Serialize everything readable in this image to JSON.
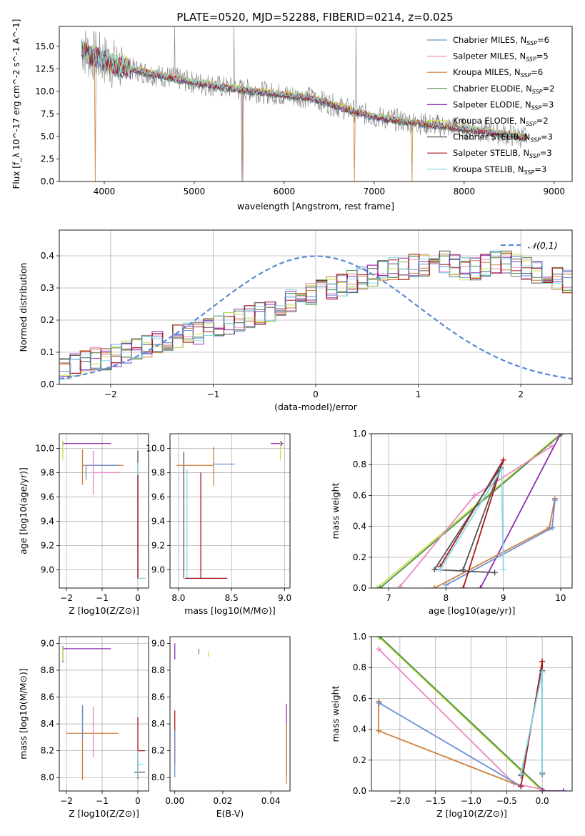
{
  "figure_title": "PLATE=0520, MJD=52288, FIBERID=0214, z=0.025",
  "series_colors": {
    "Chabrier MILES": "#6b8fd6",
    "Salpeter MILES": "#ec87c4",
    "Kroupa MILES": "#cf7f3a",
    "Chabrier ELODIE": "#4c8f4c",
    "Salpeter ELODIE": "#8e2fb4",
    "Kroupa ELODIE": "#c6e04a",
    "Chabrier STELIB": "#555555",
    "Salpeter STELIB": "#a8191b",
    "Kroupa STELIB": "#86d8e8"
  },
  "data_color": "#7f7f7f",
  "chart_data": [
    {
      "id": "spectrum",
      "type": "line",
      "title": "PLATE=0520, MJD=52288, FIBERID=0214, z=0.025",
      "xlabel": "wavelength [Angstrom, rest frame]",
      "ylabel": "Flux [f_λ 10^-17 erg cm^-2 s^-1 A^-1]",
      "xlim": [
        3500,
        9200
      ],
      "ylim": [
        0,
        17.2
      ],
      "xticks": [
        4000,
        5000,
        6000,
        7000,
        8000,
        9000
      ],
      "yticks": [
        "0.0",
        "2.5",
        "5.0",
        "7.5",
        "10.0",
        "12.5",
        "15.0"
      ],
      "grid": false,
      "legend_position": "top-right",
      "legend": [
        {
          "name": "Chabrier MILES",
          "nssp": "6"
        },
        {
          "name": "Salpeter MILES",
          "nssp": "5"
        },
        {
          "name": "Kroupa MILES",
          "nssp": "6"
        },
        {
          "name": "Chabrier ELODIE",
          "nssp": "2"
        },
        {
          "name": "Salpeter ELODIE",
          "nssp": "3"
        },
        {
          "name": "Kroupa ELODIE",
          "nssp": "2"
        },
        {
          "name": "Chabrier STELIB",
          "nssp": "3"
        },
        {
          "name": "Salpeter STELIB",
          "nssp": "3"
        },
        {
          "name": "Kroupa STELIB",
          "nssp": "3"
        }
      ],
      "continuum": {
        "x": [
          3750,
          3850,
          4000,
          4100,
          4300,
          4500,
          4700,
          5000,
          5300,
          5600,
          6000,
          6300,
          6600,
          7000,
          7400,
          7800,
          8200,
          8600,
          8700
        ],
        "y": [
          14.8,
          14.0,
          13.5,
          13.0,
          12.5,
          12.0,
          11.6,
          11.0,
          10.5,
          10.1,
          9.6,
          9.3,
          8.3,
          7.2,
          6.6,
          6.1,
          5.6,
          5.0,
          4.9
        ]
      },
      "model_drops": [
        {
          "series": "Kroupa MILES",
          "x": 3900
        },
        {
          "series": "Chabrier MILES",
          "x": 5530
        },
        {
          "series": "Kroupa MILES",
          "x": 5540
        },
        {
          "series": "Kroupa MILES",
          "x": 6780
        },
        {
          "series": "Kroupa MILES",
          "x": 7420
        }
      ],
      "data_spikes": [
        4780,
        5440,
        6800
      ]
    },
    {
      "id": "residuals",
      "type": "histogram",
      "xlabel": "(data-model)/error",
      "ylabel": "Normed distribution",
      "xlim": [
        -2.5,
        2.5
      ],
      "ylim": [
        0,
        0.48
      ],
      "xticks": [
        "−2",
        "−1",
        "0",
        "1",
        "2"
      ],
      "yticks": [
        "0.0",
        "0.1",
        "0.2",
        "0.3",
        "0.4"
      ],
      "grid": true,
      "legend_position": "top-right",
      "reference": {
        "name": "𝒩(0,1)",
        "mean": 0,
        "sigma": 1
      },
      "bin_width": 0.1,
      "bin_edges_start": -2.5,
      "base_profile": [
        0.05,
        0.06,
        0.07,
        0.08,
        0.08,
        0.09,
        0.1,
        0.11,
        0.12,
        0.13,
        0.14,
        0.15,
        0.16,
        0.16,
        0.17,
        0.18,
        0.19,
        0.2,
        0.21,
        0.22,
        0.23,
        0.25,
        0.26,
        0.27,
        0.28,
        0.29,
        0.3,
        0.31,
        0.32,
        0.33,
        0.34,
        0.35,
        0.36,
        0.36,
        0.37,
        0.37,
        0.37,
        0.38,
        0.37,
        0.36,
        0.36,
        0.37,
        0.38,
        0.38,
        0.37,
        0.36,
        0.35,
        0.34,
        0.33,
        0.32,
        0.31,
        0.3,
        0.29,
        0.27,
        0.25,
        0.23,
        0.22,
        0.21,
        0.2,
        0.19,
        0.18,
        0.17,
        0.16,
        0.15,
        0.14,
        0.13,
        0.12,
        0.11,
        0.1,
        0.09,
        0.08,
        0.08,
        0.07,
        0.06,
        0.06,
        0.05,
        0.05,
        0.04,
        0.04,
        0.03,
        0.04,
        0.04,
        0.03,
        0.03,
        0.03,
        0.03,
        0.03,
        0.03,
        0.03,
        0.03,
        0.03,
        0.03,
        0.03,
        0.03,
        0.03,
        0.03,
        0.03,
        0.03,
        0.03,
        0.03
      ]
    },
    {
      "id": "age_vs_Z",
      "type": "errorbar",
      "xlabel": "Z [log10(Z/Z⊙)]",
      "ylabel": "age [log10(age/yr)]",
      "xlim": [
        -2.2,
        0.3
      ],
      "ylim": [
        8.85,
        10.12
      ],
      "xticks": [
        "−2",
        "−1",
        "0"
      ],
      "yticks": [
        "9.0",
        "9.2",
        "9.4",
        "9.6",
        "9.8",
        "10.0"
      ],
      "grid": true,
      "points": [
        {
          "series": "Salpeter ELODIE",
          "x": -2.1,
          "y": 10.04,
          "xerr": [
            0,
            1.35
          ],
          "yerr": [
            0.02,
            0.02
          ]
        },
        {
          "series": "Kroupa ELODIE",
          "x": -2.1,
          "y": 9.98,
          "xerr": [
            0,
            0
          ],
          "yerr": [
            0.08,
            0.08
          ]
        },
        {
          "series": "Kroupa MILES",
          "x": -1.55,
          "y": 9.86,
          "xerr": [
            0,
            1.15
          ],
          "yerr": [
            0.16,
            0.13
          ]
        },
        {
          "series": "Chabrier MILES",
          "x": -1.45,
          "y": 9.86,
          "xerr": [
            0,
            0.9
          ],
          "yerr": [
            0.12,
            0
          ]
        },
        {
          "series": "Salpeter MILES",
          "x": -1.25,
          "y": 9.8,
          "xerr": [
            0,
            0.75
          ],
          "yerr": [
            0.18,
            0.18
          ]
        },
        {
          "series": "Chabrier STELIB",
          "x": 0.0,
          "y": 9.88,
          "xerr": [
            0,
            0
          ],
          "yerr": [
            0.95,
            0.1
          ]
        },
        {
          "series": "Kroupa STELIB",
          "x": 0.0,
          "y": 8.93,
          "xerr": [
            0,
            0.22
          ],
          "yerr": [
            0,
            0.95
          ]
        },
        {
          "series": "Salpeter STELIB",
          "x": 0.0,
          "y": 8.93,
          "xerr": [
            0,
            0
          ],
          "yerr": [
            0,
            0.85
          ]
        }
      ]
    },
    {
      "id": "age_vs_mass",
      "type": "errorbar",
      "xlabel": "mass [log10(M/M⊙)]",
      "ylabel": "",
      "xlim": [
        7.92,
        9.05
      ],
      "ylim": [
        8.85,
        10.12
      ],
      "xticks": [
        "8.0",
        "8.5",
        "9.0"
      ],
      "yticks": [
        "9.0",
        "9.2",
        "9.4",
        "9.6",
        "9.8",
        "10.0"
      ],
      "grid": true,
      "points": [
        {
          "series": "Chabrier STELIB",
          "x": 8.05,
          "y": 9.85,
          "xerr": [
            0,
            0
          ],
          "yerr": [
            0.92,
            0.12
          ]
        },
        {
          "series": "Kroupa STELIB",
          "x": 8.08,
          "y": 8.93,
          "xerr": [
            0,
            0.3
          ],
          "yerr": [
            0,
            0.9
          ]
        },
        {
          "series": "Salpeter STELIB",
          "x": 8.21,
          "y": 8.93,
          "xerr": [
            0.15,
            0.25
          ],
          "yerr": [
            0,
            0.87
          ]
        },
        {
          "series": "Kroupa MILES",
          "x": 8.33,
          "y": 9.86,
          "xerr": [
            0.35,
            0
          ],
          "yerr": [
            0.17,
            0.15
          ]
        },
        {
          "series": "Chabrier MILES",
          "x": 8.33,
          "y": 9.87,
          "xerr": [
            0,
            0.2
          ],
          "yerr": [
            0,
            0
          ]
        },
        {
          "series": "Salpeter ELODIE",
          "x": 8.97,
          "y": 10.04,
          "xerr": [
            0.1,
            0.02
          ],
          "yerr": [
            0.02,
            0.02
          ]
        },
        {
          "series": "Kroupa ELODIE",
          "x": 8.96,
          "y": 9.98,
          "xerr": [
            0,
            0
          ],
          "yerr": [
            0.08,
            0.08
          ]
        }
      ]
    },
    {
      "id": "weight_vs_age",
      "type": "line",
      "xlabel": "age [log10(age/yr)]",
      "ylabel": "mass weight",
      "xlim": [
        6.7,
        10.2
      ],
      "ylim": [
        0,
        1.0
      ],
      "xticks": [
        "7",
        "8",
        "9",
        "10"
      ],
      "yticks": [
        "0.0",
        "0.2",
        "0.4",
        "0.6",
        "0.8",
        "1.0"
      ],
      "grid": true,
      "series": [
        {
          "name": "Kroupa ELODIE",
          "x": [
            6.8,
            10.0
          ],
          "y": [
            0.0,
            1.0
          ]
        },
        {
          "name": "Chabrier ELODIE",
          "x": [
            6.85,
            10.02
          ],
          "y": [
            0.0,
            1.0
          ]
        },
        {
          "name": "Salpeter MILES",
          "x": [
            7.2,
            8.5,
            9.85
          ],
          "y": [
            0.01,
            0.6,
            0.92
          ]
        },
        {
          "name": "Salpeter ELODIE",
          "x": [
            8.6,
            10.0
          ],
          "y": [
            0.0,
            1.0
          ]
        },
        {
          "name": "Kroupa MILES",
          "x": [
            7.8,
            9.8,
            9.9
          ],
          "y": [
            0.0,
            0.39,
            0.58
          ]
        },
        {
          "name": "Chabrier MILES",
          "x": [
            8.0,
            9.85,
            9.9
          ],
          "y": [
            0.02,
            0.39,
            0.57
          ]
        },
        {
          "name": "Salpeter STELIB",
          "x": [
            8.3,
            9.0,
            7.9
          ],
          "y": [
            0.0,
            0.83,
            0.14
          ]
        },
        {
          "name": "Chabrier STELIB",
          "x": [
            8.3,
            8.95,
            7.8,
            8.85
          ],
          "y": [
            0.12,
            0.78,
            0.12,
            0.1
          ]
        },
        {
          "name": "Kroupa STELIB",
          "x": [
            7.9,
            8.97,
            9.0
          ],
          "y": [
            0.12,
            0.77,
            0.12
          ]
        }
      ]
    },
    {
      "id": "mass_vs_Z",
      "type": "errorbar",
      "xlabel": "Z [log10(Z/Z⊙)]",
      "ylabel": "mass [log10(M/M⊙)]",
      "xlim": [
        -2.2,
        0.3
      ],
      "ylim": [
        7.9,
        9.05
      ],
      "xticks": [
        "−2",
        "−1",
        "0"
      ],
      "yticks": [
        "8.0",
        "8.2",
        "8.4",
        "8.6",
        "8.8",
        "9.0"
      ],
      "grid": true,
      "points": [
        {
          "series": "Salpeter ELODIE",
          "x": -2.1,
          "y": 8.96,
          "xerr": [
            0,
            1.35
          ],
          "yerr": [
            0.1,
            0.02
          ]
        },
        {
          "series": "Kroupa ELODIE",
          "x": -2.1,
          "y": 8.92,
          "xerr": [
            0,
            0
          ],
          "yerr": [
            0.05,
            0.05
          ]
        },
        {
          "series": "Kroupa MILES",
          "x": -1.55,
          "y": 8.33,
          "xerr": [
            0.45,
            1.0
          ],
          "yerr": [
            0.35,
            0.2
          ]
        },
        {
          "series": "Chabrier MILES",
          "x": -1.55,
          "y": 8.34,
          "xerr": [
            0,
            0
          ],
          "yerr": [
            0.05,
            0.2
          ]
        },
        {
          "series": "Salpeter MILES",
          "x": -1.25,
          "y": 8.33,
          "xerr": [
            0,
            0
          ],
          "yerr": [
            0.18,
            0.2
          ]
        },
        {
          "series": "Salpeter STELIB",
          "x": 0.0,
          "y": 8.2,
          "xerr": [
            0,
            0.2
          ],
          "yerr": [
            0.2,
            0.25
          ]
        },
        {
          "series": "Chabrier STELIB",
          "x": 0.0,
          "y": 8.04,
          "xerr": [
            0.1,
            0.2
          ],
          "yerr": [
            0.05,
            0.1
          ]
        },
        {
          "series": "Kroupa STELIB",
          "x": 0.0,
          "y": 8.1,
          "xerr": [
            0,
            0.15
          ],
          "yerr": [
            0.1,
            0.1
          ]
        }
      ]
    },
    {
      "id": "mass_vs_ebv",
      "type": "errorbar",
      "xlabel": "E(B-V)",
      "ylabel": "",
      "xlim": [
        -0.002,
        0.048
      ],
      "ylim": [
        7.9,
        9.05
      ],
      "xticks": [
        "0.00",
        "0.02",
        "0.04"
      ],
      "yticks": [
        "8.0",
        "8.2",
        "8.4",
        "8.6",
        "8.8",
        "9.0"
      ],
      "grid": false,
      "points": [
        {
          "series": "Salpeter ELODIE",
          "x": 0.0,
          "y": 8.94,
          "xerr": [
            0,
            0
          ],
          "yerr": [
            0.06,
            0.06
          ]
        },
        {
          "series": "Chabrier ELODIE",
          "x": 0.01,
          "y": 8.94,
          "xerr": [
            0,
            0
          ],
          "yerr": [
            0.02,
            0.02
          ]
        },
        {
          "series": "Kroupa ELODIE",
          "x": 0.014,
          "y": 8.92,
          "xerr": [
            0,
            0
          ],
          "yerr": [
            0.02,
            0.02
          ]
        },
        {
          "series": "Salpeter STELIB",
          "x": 0.0,
          "y": 8.3,
          "xerr": [
            0,
            0
          ],
          "yerr": [
            0.2,
            0.2
          ]
        },
        {
          "series": "Chabrier MILES",
          "x": 0.0,
          "y": 8.15,
          "xerr": [
            0,
            0
          ],
          "yerr": [
            0.15,
            0.2
          ]
        },
        {
          "series": "Salpeter ELODIE",
          "x": 0.0465,
          "y": 8.3,
          "xerr": [
            0,
            0
          ],
          "yerr": [
            0.3,
            0.25
          ]
        },
        {
          "series": "Kroupa MILES",
          "x": 0.0465,
          "y": 8.2,
          "xerr": [
            0,
            0
          ],
          "yerr": [
            0.25,
            0.2
          ]
        }
      ]
    },
    {
      "id": "weight_vs_Z",
      "type": "line",
      "xlabel": "Z [log10(Z/Z⊙)]",
      "ylabel": "mass weight",
      "xlim": [
        -2.4,
        0.42
      ],
      "ylim": [
        0,
        1.0
      ],
      "xticks": [
        "−2.0",
        "−1.5",
        "−1.0",
        "−0.5",
        "0.0"
      ],
      "yticks": [
        "0.0",
        "0.2",
        "0.4",
        "0.6",
        "0.8",
        "1.0"
      ],
      "grid": true,
      "series": [
        {
          "name": "Kroupa ELODIE",
          "x": [
            -2.3,
            0.0
          ],
          "y": [
            1.0,
            0.0
          ]
        },
        {
          "name": "Chabrier ELODIE",
          "x": [
            -2.28,
            0.02
          ],
          "y": [
            1.0,
            0.0
          ]
        },
        {
          "name": "Salpeter MILES",
          "x": [
            -2.3,
            -0.4,
            0.0
          ],
          "y": [
            0.92,
            0.05,
            0.01
          ]
        },
        {
          "name": "Kroupa MILES",
          "x": [
            -2.3,
            -2.3,
            -0.3
          ],
          "y": [
            0.58,
            0.39,
            0.03
          ]
        },
        {
          "name": "Chabrier MILES",
          "x": [
            -2.29,
            -0.3
          ],
          "y": [
            0.57,
            0.03
          ]
        },
        {
          "name": "Salpeter STELIB",
          "x": [
            -0.3,
            0.0,
            0.0
          ],
          "y": [
            0.03,
            0.84,
            0.12
          ]
        },
        {
          "name": "Chabrier STELIB",
          "x": [
            -0.3,
            0.0,
            0.0
          ],
          "y": [
            0.1,
            0.78,
            0.11
          ]
        },
        {
          "name": "Kroupa STELIB",
          "x": [
            -0.3,
            0.0,
            0.0
          ],
          "y": [
            0.11,
            0.77,
            0.12
          ]
        },
        {
          "name": "Salpeter ELODIE",
          "x": [
            0.0,
            0.3
          ],
          "y": [
            0.0,
            0.0
          ]
        }
      ]
    }
  ]
}
